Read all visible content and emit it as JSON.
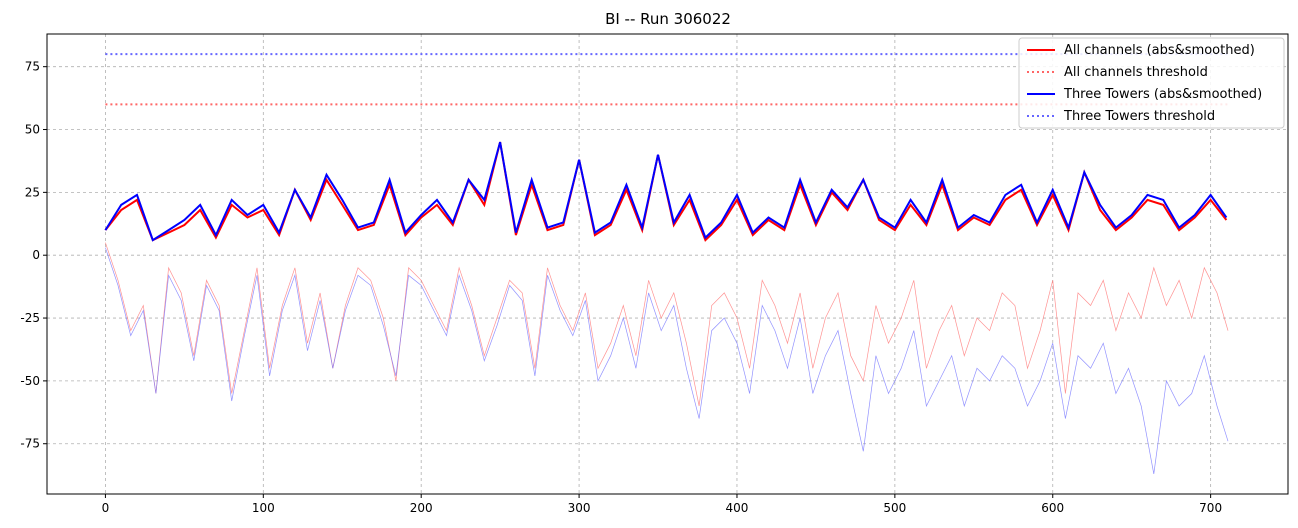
{
  "chart_data": {
    "type": "line",
    "title": "BI -- Run 306022",
    "xlabel": "",
    "ylabel": "",
    "xlim": [
      -37,
      749
    ],
    "ylim": [
      -95,
      88
    ],
    "x_ticks": [
      0,
      100,
      200,
      300,
      400,
      500,
      600,
      700
    ],
    "y_ticks": [
      -75,
      -50,
      -25,
      0,
      25,
      50,
      75
    ],
    "grid": true,
    "legend_placement": "top-right",
    "colors": {
      "red": "#ff0000",
      "blue": "#0000ff",
      "red_threshold": "#ff6666",
      "blue_threshold": "#6666ff"
    },
    "series": [
      {
        "name": "All channels (abs&smoothed)",
        "style": "solid",
        "color": "#ff0000",
        "x": [
          0,
          10,
          20,
          30,
          40,
          50,
          60,
          70,
          80,
          90,
          100,
          110,
          120,
          130,
          140,
          150,
          160,
          170,
          180,
          190,
          200,
          210,
          220,
          230,
          240,
          250,
          260,
          270,
          280,
          290,
          300,
          310,
          320,
          330,
          340,
          350,
          360,
          370,
          380,
          390,
          400,
          410,
          420,
          430,
          440,
          450,
          460,
          470,
          480,
          490,
          500,
          510,
          520,
          530,
          540,
          550,
          560,
          570,
          580,
          590,
          600,
          610,
          620,
          630,
          640,
          650,
          660,
          670,
          680,
          690,
          700,
          710
        ],
        "values": [
          10,
          18,
          22,
          6,
          9,
          12,
          18,
          7,
          20,
          15,
          18,
          8,
          26,
          14,
          30,
          20,
          10,
          12,
          28,
          8,
          15,
          20,
          12,
          30,
          20,
          45,
          8,
          28,
          10,
          12,
          38,
          8,
          12,
          26,
          10,
          40,
          12,
          22,
          6,
          12,
          22,
          8,
          14,
          10,
          28,
          12,
          25,
          18,
          30,
          14,
          10,
          20,
          12,
          28,
          10,
          15,
          12,
          22,
          26,
          12,
          24,
          10,
          33,
          18,
          10,
          15,
          22,
          20,
          10,
          15,
          22,
          14
        ]
      },
      {
        "name": "All channels threshold",
        "style": "dotted",
        "color": "#ff6666",
        "x": [
          0,
          711
        ],
        "values": [
          60,
          60
        ]
      },
      {
        "name": "Three Towers (abs&smoothed)",
        "style": "solid",
        "color": "#0000ff",
        "x": [
          0,
          10,
          20,
          30,
          40,
          50,
          60,
          70,
          80,
          90,
          100,
          110,
          120,
          130,
          140,
          150,
          160,
          170,
          180,
          190,
          200,
          210,
          220,
          230,
          240,
          250,
          260,
          270,
          280,
          290,
          300,
          310,
          320,
          330,
          340,
          350,
          360,
          370,
          380,
          390,
          400,
          410,
          420,
          430,
          440,
          450,
          460,
          470,
          480,
          490,
          500,
          510,
          520,
          530,
          540,
          550,
          560,
          570,
          580,
          590,
          600,
          610,
          620,
          630,
          640,
          650,
          660,
          670,
          680,
          690,
          700,
          710
        ],
        "values": [
          10,
          20,
          24,
          6,
          10,
          14,
          20,
          8,
          22,
          16,
          20,
          9,
          26,
          15,
          32,
          22,
          11,
          13,
          30,
          9,
          16,
          22,
          13,
          30,
          22,
          45,
          9,
          30,
          11,
          13,
          38,
          9,
          13,
          28,
          11,
          40,
          13,
          24,
          7,
          13,
          24,
          9,
          15,
          11,
          30,
          13,
          26,
          19,
          30,
          15,
          11,
          22,
          13,
          30,
          11,
          16,
          13,
          24,
          28,
          13,
          26,
          11,
          33,
          20,
          11,
          16,
          24,
          22,
          11,
          16,
          24,
          15
        ]
      },
      {
        "name": "Three Towers threshold",
        "style": "dotted",
        "color": "#6666ff",
        "x": [
          0,
          711
        ],
        "values": [
          80,
          80
        ]
      },
      {
        "style": "thin",
        "color": "#ff7777",
        "x": [
          0,
          8,
          16,
          24,
          32,
          40,
          48,
          56,
          64,
          72,
          80,
          88,
          96,
          104,
          112,
          120,
          128,
          136,
          144,
          152,
          160,
          168,
          176,
          184,
          192,
          200,
          208,
          216,
          224,
          232,
          240,
          248,
          256,
          264,
          272,
          280,
          288,
          296,
          304,
          312,
          320,
          328,
          336,
          344,
          352,
          360,
          368,
          376,
          384,
          392,
          400,
          408,
          416,
          424,
          432,
          440,
          448,
          456,
          464,
          472,
          480,
          488,
          496,
          504,
          512,
          520,
          528,
          536,
          544,
          552,
          560,
          568,
          576,
          584,
          592,
          600,
          608,
          616,
          624,
          632,
          640,
          648,
          656,
          664,
          672,
          680,
          688,
          696,
          704,
          711
        ],
        "values": [
          5,
          -10,
          -30,
          -20,
          -55,
          -5,
          -15,
          -40,
          -10,
          -20,
          -55,
          -30,
          -5,
          -45,
          -20,
          -5,
          -35,
          -15,
          -45,
          -20,
          -5,
          -10,
          -25,
          -50,
          -5,
          -10,
          -20,
          -30,
          -5,
          -20,
          -40,
          -25,
          -10,
          -15,
          -45,
          -5,
          -20,
          -30,
          -15,
          -45,
          -35,
          -20,
          -40,
          -10,
          -25,
          -15,
          -35,
          -60,
          -20,
          -15,
          -25,
          -45,
          -10,
          -20,
          -35,
          -15,
          -45,
          -25,
          -15,
          -40,
          -50,
          -20,
          -35,
          -25,
          -10,
          -45,
          -30,
          -20,
          -40,
          -25,
          -30,
          -15,
          -20,
          -45,
          -30,
          -10,
          -55,
          -15,
          -20,
          -10,
          -30,
          -15,
          -25,
          -5,
          -20,
          -10,
          -25,
          -5,
          -15,
          -30
        ]
      },
      {
        "style": "thin",
        "color": "#7777ff",
        "x": [
          0,
          8,
          16,
          24,
          32,
          40,
          48,
          56,
          64,
          72,
          80,
          88,
          96,
          104,
          112,
          120,
          128,
          136,
          144,
          152,
          160,
          168,
          176,
          184,
          192,
          200,
          208,
          216,
          224,
          232,
          240,
          248,
          256,
          264,
          272,
          280,
          288,
          296,
          304,
          312,
          320,
          328,
          336,
          344,
          352,
          360,
          368,
          376,
          384,
          392,
          400,
          408,
          416,
          424,
          432,
          440,
          448,
          456,
          464,
          472,
          480,
          488,
          496,
          504,
          512,
          520,
          528,
          536,
          544,
          552,
          560,
          568,
          576,
          584,
          592,
          600,
          608,
          616,
          624,
          632,
          640,
          648,
          656,
          664,
          672,
          680,
          688,
          696,
          704,
          711
        ],
        "values": [
          3,
          -12,
          -32,
          -22,
          -55,
          -8,
          -18,
          -42,
          -12,
          -22,
          -58,
          -32,
          -8,
          -48,
          -22,
          -8,
          -38,
          -18,
          -45,
          -22,
          -8,
          -12,
          -28,
          -48,
          -8,
          -12,
          -22,
          -32,
          -8,
          -22,
          -42,
          -28,
          -12,
          -18,
          -48,
          -8,
          -22,
          -32,
          -18,
          -50,
          -40,
          -25,
          -45,
          -15,
          -30,
          -20,
          -45,
          -65,
          -30,
          -25,
          -35,
          -55,
          -20,
          -30,
          -45,
          -25,
          -55,
          -40,
          -30,
          -55,
          -78,
          -40,
          -55,
          -45,
          -30,
          -60,
          -50,
          -40,
          -60,
          -45,
          -50,
          -40,
          -45,
          -60,
          -50,
          -35,
          -65,
          -40,
          -45,
          -35,
          -55,
          -45,
          -60,
          -87,
          -50,
          -60,
          -55,
          -40,
          -60,
          -74
        ]
      }
    ]
  }
}
